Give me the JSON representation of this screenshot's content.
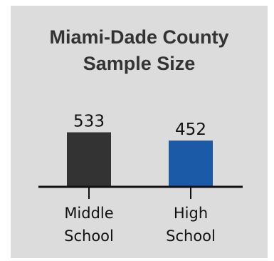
{
  "chart_data": {
    "type": "bar",
    "title_lines": [
      "Miami-Dade County",
      "Sample Size"
    ],
    "categories": [
      [
        "Middle",
        "School"
      ],
      [
        "High",
        "School"
      ]
    ],
    "values": [
      533,
      452
    ],
    "colors": [
      "#333333",
      "#1b5aa6"
    ],
    "xlabel": "",
    "ylabel": "",
    "grid": false,
    "legend": "none"
  }
}
